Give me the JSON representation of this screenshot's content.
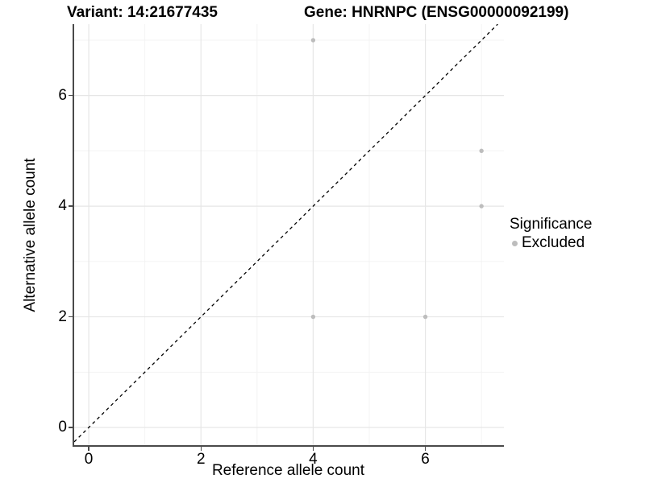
{
  "header": {
    "variant_title": "Variant: 14:21677435",
    "gene_title": "Gene: HNRNPC (ENSG00000092199)"
  },
  "chart_data": {
    "type": "scatter",
    "xlabel": "Reference allele count",
    "ylabel": "Alternative allele count",
    "xlim": [
      -0.26,
      7.4
    ],
    "ylim": [
      -0.32,
      7.29
    ],
    "x_ticks": [
      0,
      2,
      4,
      6
    ],
    "y_ticks": [
      0,
      2,
      4,
      6
    ],
    "major_grid": [
      0,
      2,
      4,
      6
    ],
    "minor_grid": [
      1,
      3,
      5,
      7
    ],
    "grid": true,
    "legend": {
      "title": "Significance",
      "position": "right",
      "items": [
        {
          "label": "Excluded",
          "color": "#bdbdbd"
        }
      ]
    },
    "series": [
      {
        "name": "Excluded",
        "color": "#bdbdbd",
        "points": [
          {
            "x": 4,
            "y": 7
          },
          {
            "x": 7,
            "y": 5
          },
          {
            "x": 7,
            "y": 4
          },
          {
            "x": 4,
            "y": 2
          },
          {
            "x": 6,
            "y": 2
          }
        ]
      }
    ],
    "identity_line": {
      "slope": 1,
      "intercept": 0,
      "style": "dashed",
      "color": "#000000"
    }
  },
  "colors": {
    "major_grid": "#e6e6e6",
    "minor_grid": "#f2f2f2",
    "axis_line": "#4a4a4a",
    "point": "#bdbdbd",
    "background": "#ffffff"
  }
}
